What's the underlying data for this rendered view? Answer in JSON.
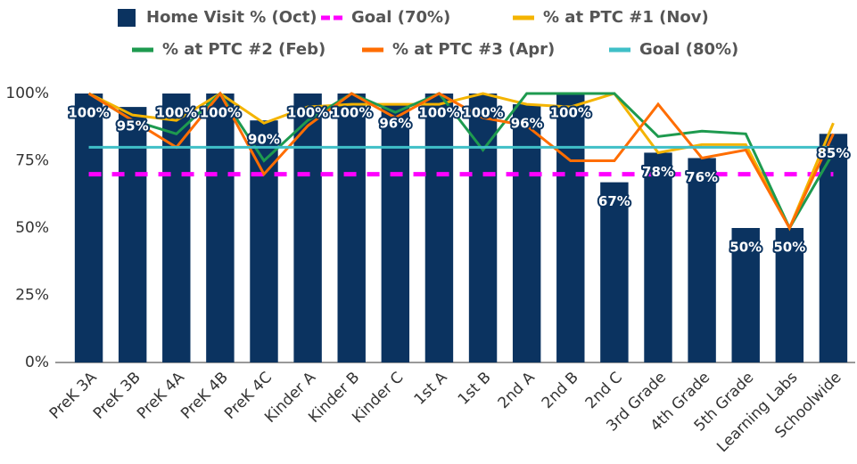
{
  "chart_data": {
    "type": "combo",
    "categories": [
      "PreK 3A",
      "PreK 3B",
      "PreK 4A",
      "PreK 4B",
      "PreK 4C",
      "Kinder A",
      "Kinder B",
      "Kinder C",
      "1st A",
      "1st B",
      "2nd A",
      "2nd B",
      "2nd C",
      "3rd Grade",
      "4th Grade",
      "5th Grade",
      "Learning Labs",
      "Schoolwide"
    ],
    "series": [
      {
        "name": "Home Visit % (Oct)",
        "type": "bar",
        "color": "#0b3360",
        "values": [
          100,
          95,
          100,
          100,
          90,
          100,
          100,
          96,
          100,
          100,
          96,
          100,
          67,
          78,
          76,
          50,
          50,
          85
        ],
        "value_labels": [
          "100%",
          "95%",
          "100%",
          "100%",
          "90%",
          "100%",
          "100%",
          "96%",
          "100%",
          "100%",
          "96%",
          "100%",
          "67%",
          "78%",
          "76%",
          "50%",
          "50%",
          "85%"
        ]
      },
      {
        "name": "Goal (70%)",
        "type": "line",
        "dashed": true,
        "color": "#ff00ff",
        "values": [
          70,
          70,
          70,
          70,
          70,
          70,
          70,
          70,
          70,
          70,
          70,
          70,
          70,
          70,
          70,
          70,
          70,
          70
        ]
      },
      {
        "name": "%  at PTC #1 (Nov)",
        "type": "line",
        "color": "#f4b400",
        "values": [
          100,
          92,
          90,
          100,
          89,
          95,
          96,
          96,
          96,
          100,
          96,
          95,
          100,
          78,
          81,
          81,
          50,
          89
        ]
      },
      {
        "name": "%  at PTC #2 (Feb)",
        "type": "line",
        "color": "#1e9a4f",
        "values": [
          100,
          90,
          85,
          100,
          75,
          90,
          100,
          93,
          100,
          79,
          100,
          100,
          100,
          84,
          86,
          85,
          50,
          78
        ]
      },
      {
        "name": "%  at PTC #3 (Apr)",
        "type": "line",
        "color": "#ff6d00",
        "values": [
          100,
          90,
          80,
          100,
          70,
          88,
          100,
          91,
          100,
          91,
          88,
          75,
          75,
          96,
          76,
          79,
          50,
          85
        ]
      },
      {
        "name": "Goal (80%)",
        "type": "line",
        "color": "#3fbfc7",
        "values": [
          80,
          80,
          80,
          80,
          80,
          80,
          80,
          80,
          80,
          80,
          80,
          80,
          80,
          80,
          80,
          80,
          80,
          80
        ]
      }
    ],
    "ylim": [
      0,
      100
    ],
    "yticks": [
      {
        "value": 0,
        "label": "0%"
      },
      {
        "value": 25,
        "label": "25%"
      },
      {
        "value": 50,
        "label": "50%"
      },
      {
        "value": 75,
        "label": "75%"
      },
      {
        "value": 100,
        "label": "100%"
      }
    ],
    "grid": false
  }
}
